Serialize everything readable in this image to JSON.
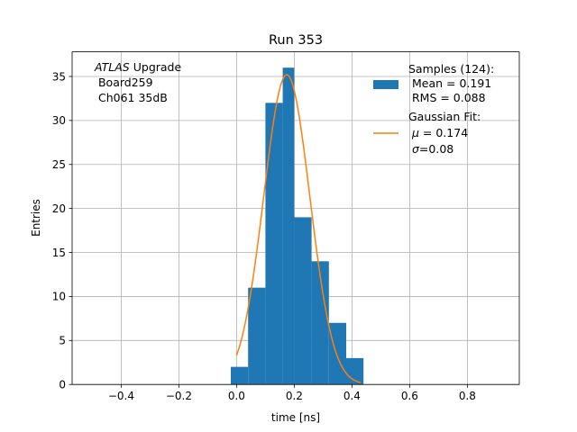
{
  "chart_data": {
    "type": "bar",
    "title": "Run 353",
    "xlabel": "time [ns]",
    "ylabel": "Entries",
    "xlim": [
      -0.57,
      0.98
    ],
    "ylim": [
      0,
      37.8
    ],
    "xticks": [
      -0.4,
      -0.2,
      0.0,
      0.2,
      0.4,
      0.6,
      0.8
    ],
    "xtick_labels": [
      "−0.4",
      "−0.2",
      "0.0",
      "0.2",
      "0.4",
      "0.6",
      "0.8"
    ],
    "yticks": [
      0,
      5,
      10,
      15,
      20,
      25,
      30,
      35
    ],
    "ytick_labels": [
      "0",
      "5",
      "10",
      "15",
      "20",
      "25",
      "30",
      "35"
    ],
    "grid": true,
    "legend_position": "top-right",
    "annotation": {
      "lines": [
        "Upgrade",
        "Board259",
        "Ch061 35dB"
      ],
      "italic_prefix": "ATLAS"
    },
    "histogram": {
      "color": "#1f77b4",
      "bin_edges": [
        -0.02,
        0.04,
        0.1,
        0.16,
        0.2,
        0.26,
        0.32,
        0.38,
        0.44
      ],
      "counts": [
        2,
        11,
        32,
        36,
        19,
        14,
        7,
        3
      ]
    },
    "fit": {
      "color": "#ff7f0e",
      "mu": 0.174,
      "sigma": 0.08,
      "amplitude": 35.2,
      "x_range": [
        0.0,
        0.43
      ]
    },
    "legend": {
      "samples_lines": [
        "Samples (124):",
        " Mean = 0.191",
        " RMS = 0.088"
      ],
      "fit_lines": [
        "Gaussian Fit:"
      ],
      "fit_mu_label": " = 0.174",
      "fit_sigma_label": "=0.08",
      "mu_symbol": "μ",
      "sigma_symbol": "σ"
    }
  }
}
